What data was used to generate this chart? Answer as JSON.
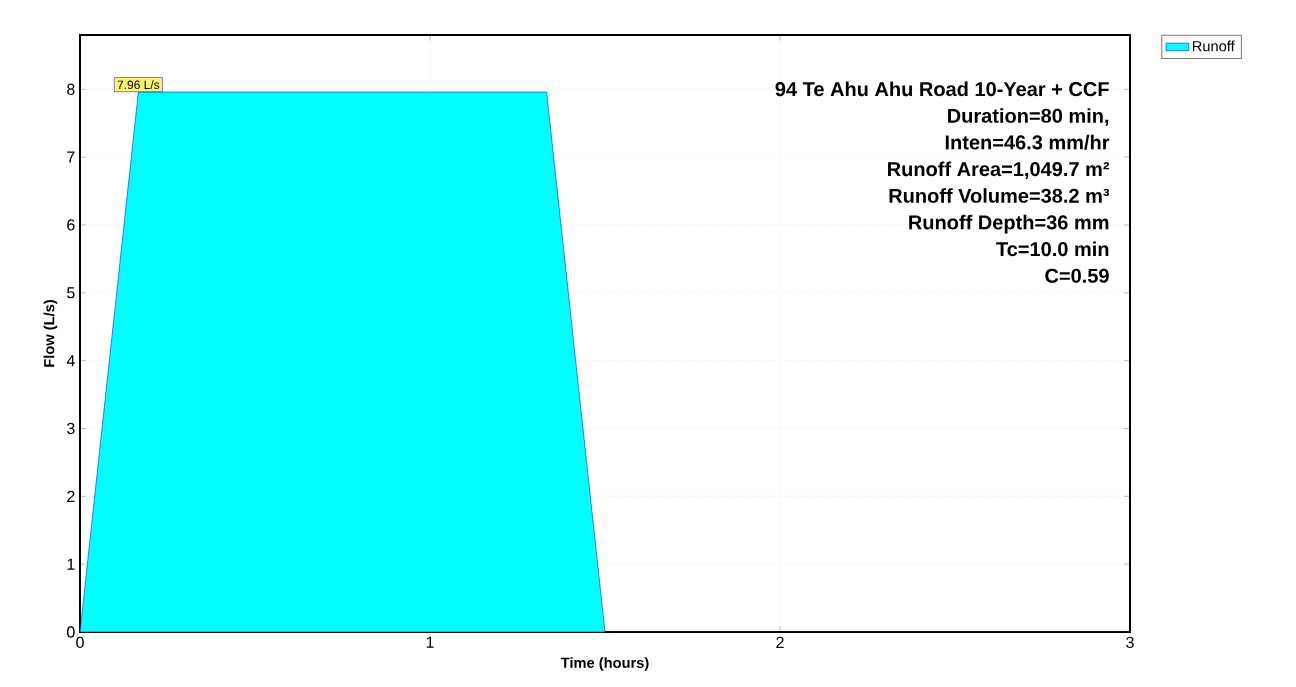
{
  "chart_data": {
    "type": "area",
    "xlabel": "Time  (hours)",
    "ylabel": "Flow  (L/s)",
    "x": [
      0,
      0.1667,
      1.3333,
      1.5,
      3
    ],
    "series": [
      {
        "name": "Runoff",
        "color": "#00ffff",
        "values": [
          0,
          7.96,
          7.96,
          0,
          0
        ]
      }
    ],
    "xlim": [
      0,
      3
    ],
    "ylim": [
      0,
      8.8
    ],
    "xticks": [
      0,
      1,
      2,
      3
    ],
    "yticks": [
      0,
      1,
      2,
      3,
      4,
      5,
      6,
      7,
      8
    ],
    "grid": true,
    "legend": "top right",
    "annotations": [
      {
        "text": "7.96 L/s",
        "x": 0.1667,
        "y": 7.96
      },
      "94 Te Ahu Ahu Road 10-Year + CCF",
      "Duration=80 min,",
      "Inten=46.3 mm/hr",
      "Runoff Area=1,049.7 m²",
      "Runoff Volume=38.2 m³",
      "Runoff Depth=36 mm",
      "Tc=10.0 min",
      "C=0.59"
    ]
  }
}
